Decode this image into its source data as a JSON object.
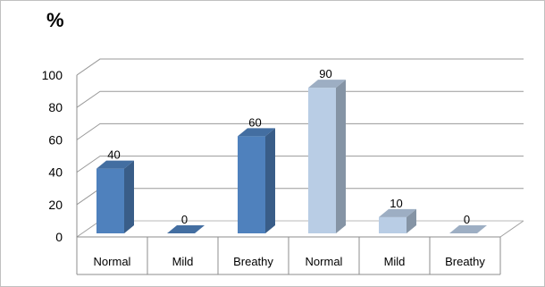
{
  "chart_data": {
    "type": "bar",
    "ylabel": "%",
    "ylim": [
      0,
      100
    ],
    "yticks": [
      0,
      20,
      40,
      60,
      80,
      100
    ],
    "grid": true,
    "categories": [
      "Normal",
      "Mild",
      "Breathy",
      "Normal",
      "Mild",
      "Breathy"
    ],
    "values": [
      40,
      0,
      60,
      90,
      10,
      0
    ],
    "data_labels": [
      "40",
      "0",
      "60",
      "90",
      "10",
      "0"
    ],
    "colors": [
      "#4F81BD",
      "#4F81BD",
      "#4F81BD",
      "#B9CDE5",
      "#B9CDE5",
      "#B9CDE5"
    ]
  }
}
